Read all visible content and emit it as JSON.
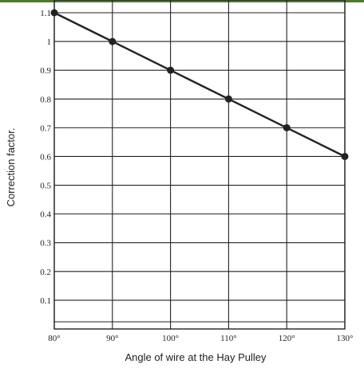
{
  "chart_data": {
    "type": "line",
    "title": "",
    "xlabel": "Angle of wire at the Hay Pulley",
    "ylabel": "Correction factor.",
    "x": [
      80,
      90,
      100,
      110,
      120,
      130
    ],
    "x_tick_labels": [
      "80°",
      "90°",
      "100°",
      "110°",
      "120°",
      "130°"
    ],
    "y_ticks": [
      0.1,
      0.2,
      0.3,
      0.4,
      0.5,
      0.6,
      0.7,
      0.8,
      0.9,
      1,
      1.1
    ],
    "y_tick_labels": [
      "0.1",
      "0.2",
      "0.3",
      "0.4",
      "0.5",
      "0.6",
      "0.7",
      "0.8",
      "0.9",
      "1",
      "1.1"
    ],
    "series": [
      {
        "values": [
          1.1,
          1.0,
          0.9,
          0.8,
          0.7,
          0.6
        ]
      }
    ],
    "xlim": [
      80,
      130
    ],
    "ylim": [
      0,
      1.1
    ],
    "grid": true,
    "colors": {
      "line": "#222222",
      "grid": "#222222",
      "accent_bar": "#4c7a2c"
    }
  }
}
